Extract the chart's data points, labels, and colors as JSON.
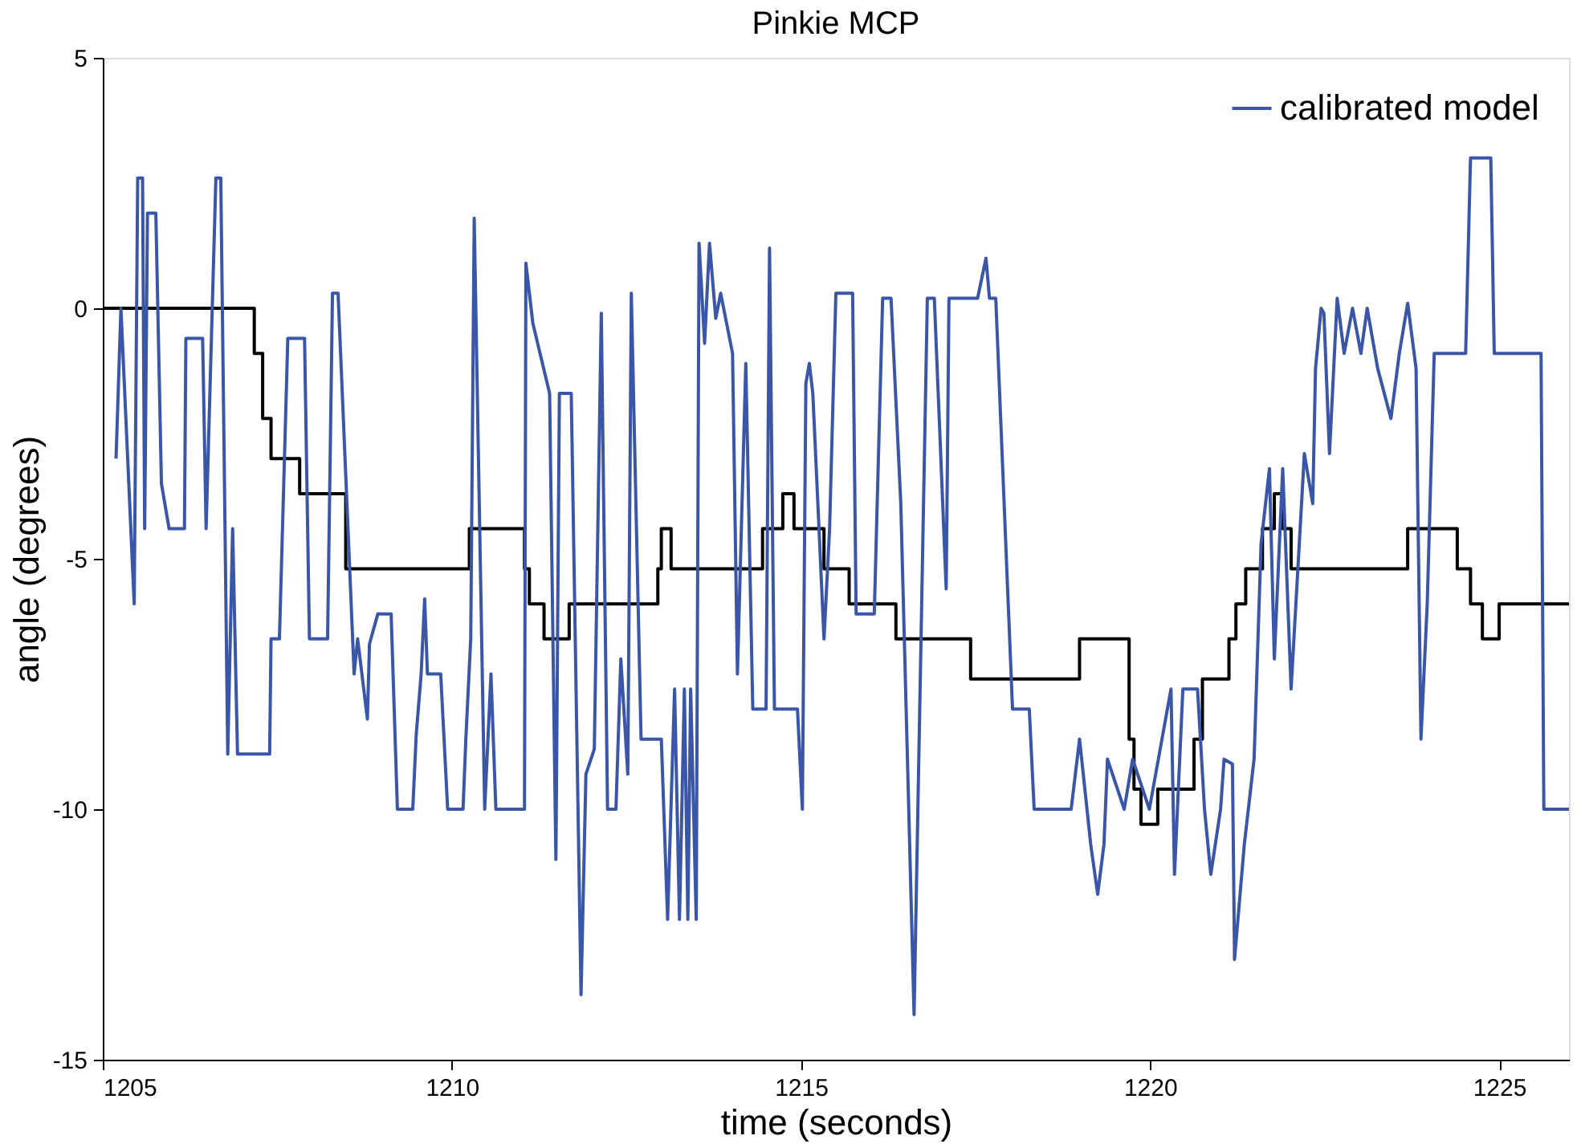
{
  "chart_data": {
    "type": "line",
    "title": "Pinkie MCP",
    "xlabel": "time (seconds)",
    "ylabel": "angle (degrees)",
    "xlim": [
      1205,
      1226
    ],
    "xticks": [
      1205,
      1210,
      1215,
      1220,
      1225
    ],
    "ylim": [
      -15,
      5
    ],
    "yticks": [
      -15,
      -10,
      -5,
      0,
      5
    ],
    "grid": false,
    "legend": "top right",
    "line_style": "solid",
    "marker": "none",
    "series": [
      {
        "type": "step",
        "color": "#000000",
        "x": [
          1205.0,
          1207.17,
          1207.29,
          1207.41,
          1207.82,
          1208.48,
          1210.25,
          1211.04,
          1211.11,
          1211.32,
          1211.68,
          1212.95,
          1213.0,
          1213.14,
          1214.45,
          1214.74,
          1214.9,
          1215.33,
          1215.69,
          1216.36,
          1217.43,
          1218.99,
          1219.7,
          1219.77,
          1219.87,
          1220.11,
          1220.63,
          1220.75,
          1221.13,
          1221.23,
          1221.37,
          1221.61,
          1221.78,
          1221.9,
          1222.02,
          1223.69,
          1224.4,
          1224.59,
          1224.76,
          1225.0,
          1226.0
        ],
        "values": [
          0,
          -0.9,
          -2.2,
          -3.0,
          -3.7,
          -5.2,
          -4.4,
          -5.2,
          -5.9,
          -6.6,
          -5.9,
          -5.2,
          -4.4,
          -5.2,
          -4.4,
          -3.7,
          -4.4,
          -5.2,
          -5.9,
          -6.6,
          -7.4,
          -6.6,
          -8.6,
          -9.6,
          -10.3,
          -9.6,
          -8.6,
          -7.4,
          -6.6,
          -5.9,
          -5.2,
          -4.4,
          -3.7,
          -4.4,
          -5.2,
          -4.4,
          -5.2,
          -5.9,
          -6.6,
          -5.9,
          -5.9
        ]
      },
      {
        "type": "line",
        "name": "calibrated model",
        "color": "#3a56a8",
        "x": [
          1205.19,
          1205.26,
          1205.45,
          1205.5,
          1205.57,
          1205.6,
          1205.64,
          1205.76,
          1205.84,
          1205.95,
          1206.17,
          1206.19,
          1206.43,
          1206.48,
          1206.62,
          1206.69,
          1206.79,
          1206.86,
          1206.93,
          1207.39,
          1207.41,
          1207.53,
          1207.65,
          1207.89,
          1207.96,
          1208.22,
          1208.29,
          1208.37,
          1208.6,
          1208.65,
          1208.79,
          1208.82,
          1208.94,
          1209.13,
          1209.22,
          1209.44,
          1209.49,
          1209.56,
          1209.61,
          1209.65,
          1209.84,
          1209.94,
          1210.16,
          1210.2,
          1210.27,
          1210.32,
          1210.47,
          1210.56,
          1210.63,
          1211.04,
          1211.06,
          1211.16,
          1211.4,
          1211.49,
          1211.54,
          1211.71,
          1211.85,
          1211.92,
          1212.04,
          1212.14,
          1212.23,
          1212.35,
          1212.42,
          1212.52,
          1212.57,
          1212.71,
          1212.83,
          1213.0,
          1213.09,
          1213.19,
          1213.26,
          1213.33,
          1213.38,
          1213.42,
          1213.5,
          1213.54,
          1213.62,
          1213.69,
          1213.78,
          1213.85,
          1214.02,
          1214.09,
          1214.21,
          1214.31,
          1214.38,
          1214.5,
          1214.55,
          1214.62,
          1214.69,
          1214.81,
          1214.95,
          1215.02,
          1215.07,
          1215.12,
          1215.17,
          1215.33,
          1215.41,
          1215.5,
          1215.74,
          1215.79,
          1216.05,
          1216.17,
          1216.29,
          1216.43,
          1216.62,
          1216.81,
          1216.91,
          1217.08,
          1217.12,
          1217.53,
          1217.65,
          1217.7,
          1217.79,
          1218.03,
          1218.27,
          1218.34,
          1218.87,
          1218.99,
          1219.15,
          1219.25,
          1219.34,
          1219.39,
          1219.63,
          1219.75,
          1219.99,
          1220.3,
          1220.35,
          1220.47,
          1220.68,
          1220.78,
          1220.87,
          1221.01,
          1221.06,
          1221.18,
          1221.21,
          1221.35,
          1221.49,
          1221.59,
          1221.71,
          1221.78,
          1221.9,
          1222.02,
          1222.21,
          1222.33,
          1222.37,
          1222.45,
          1222.49,
          1222.57,
          1222.68,
          1222.78,
          1222.9,
          1223.02,
          1223.11,
          1223.26,
          1223.45,
          1223.57,
          1223.69,
          1223.81,
          1223.88,
          1223.97,
          1224.07,
          1224.52,
          1224.59,
          1224.88,
          1224.93,
          1225.6,
          1225.64,
          1226.0
        ],
        "values": [
          -3.0,
          0.0,
          -5.9,
          2.6,
          2.6,
          -4.4,
          1.9,
          1.9,
          -3.5,
          -4.4,
          -4.4,
          -0.6,
          -0.6,
          -4.4,
          2.6,
          2.6,
          -8.9,
          -4.4,
          -8.9,
          -8.9,
          -6.6,
          -6.6,
          -0.6,
          -0.6,
          -6.6,
          -6.6,
          0.3,
          0.3,
          -7.3,
          -6.6,
          -8.2,
          -6.7,
          -6.1,
          -6.1,
          -10.0,
          -10.0,
          -8.5,
          -7.3,
          -5.8,
          -7.3,
          -7.3,
          -10.0,
          -10.0,
          -8.6,
          -6.6,
          1.8,
          -10.0,
          -7.3,
          -10.0,
          -10.0,
          0.9,
          -0.3,
          -1.7,
          -11.0,
          -1.7,
          -1.7,
          -13.7,
          -9.3,
          -8.8,
          -0.1,
          -10.0,
          -10.0,
          -7.0,
          -9.3,
          0.3,
          -8.6,
          -8.6,
          -8.6,
          -12.2,
          -7.6,
          -12.2,
          -7.6,
          -12.2,
          -7.6,
          -12.2,
          1.3,
          -0.7,
          1.3,
          -0.2,
          0.3,
          -0.9,
          -7.3,
          -1.1,
          -8.0,
          -8.0,
          -8.0,
          1.2,
          -8.0,
          -8.0,
          -8.0,
          -8.0,
          -10.0,
          -1.5,
          -1.1,
          -1.7,
          -6.6,
          -4.4,
          0.3,
          0.3,
          -6.1,
          -6.1,
          0.2,
          0.2,
          -3.9,
          -14.1,
          0.2,
          0.2,
          -5.6,
          0.2,
          0.2,
          1.0,
          0.2,
          0.2,
          -8.0,
          -8.0,
          -10.0,
          -10.0,
          -8.6,
          -10.7,
          -11.7,
          -10.7,
          -9.0,
          -10.0,
          -9.0,
          -10.0,
          -7.6,
          -11.3,
          -7.6,
          -7.6,
          -10.0,
          -11.3,
          -10.0,
          -9.0,
          -9.1,
          -13.0,
          -10.7,
          -9.0,
          -4.7,
          -3.2,
          -7.0,
          -3.2,
          -7.6,
          -2.9,
          -3.9,
          -1.2,
          0.0,
          -0.1,
          -2.9,
          0.2,
          -0.9,
          0.0,
          -0.9,
          0.0,
          -1.2,
          -2.2,
          -0.9,
          0.1,
          -1.2,
          -8.6,
          -5.9,
          -0.9,
          -0.9,
          3.0,
          3.0,
          -0.9,
          -0.9,
          -10.0,
          -10.0
        ]
      }
    ]
  }
}
